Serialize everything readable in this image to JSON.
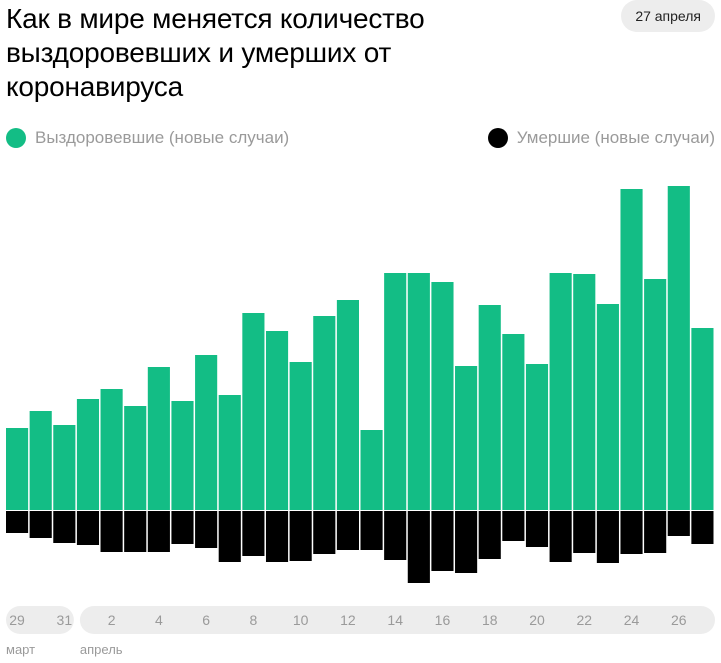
{
  "header": {
    "title": "Как в мире меняется количество выздоровевших и умерших от коронавируса",
    "date": "27 апреля"
  },
  "legend": {
    "recovered": "Выздоровевшие (новые случаи)",
    "deaths": "Умершие (новые случаи)"
  },
  "colors": {
    "recovered": "#13bd85",
    "deaths": "#000000",
    "axis_pill": "#ededed",
    "text_muted": "#9a9a9a"
  },
  "chart_data": {
    "type": "bar",
    "title": "Как в мире меняется количество выздоровевших и умерших от коронавируса",
    "categories": [
      "29",
      "30",
      "31",
      "1",
      "2",
      "3",
      "4",
      "5",
      "6",
      "7",
      "8",
      "9",
      "10",
      "11",
      "12",
      "13",
      "14",
      "15",
      "16",
      "17",
      "18",
      "19",
      "20",
      "21",
      "22",
      "23",
      "24",
      "25",
      "26",
      "27"
    ],
    "tick_labels": [
      "29",
      "31",
      "2",
      "4",
      "6",
      "8",
      "10",
      "12",
      "14",
      "16",
      "18",
      "20",
      "22",
      "24",
      "26"
    ],
    "month_labels": [
      "март",
      "апрель"
    ],
    "series": [
      {
        "name": "Выздоровевшие (новые случаи)",
        "values": [
          82,
          99,
          85,
          111,
          121,
          104,
          143,
          109,
          155,
          115,
          197,
          179,
          148,
          194,
          210,
          80,
          237,
          237,
          228,
          144,
          205,
          176,
          146,
          237,
          236,
          206,
          321,
          231,
          324,
          182
        ]
      },
      {
        "name": "Умершие (новые случаи)",
        "values": [
          -22,
          -27,
          -32,
          -34,
          -41,
          -41,
          -41,
          -33,
          -37,
          -51,
          -45,
          -51,
          -50,
          -43,
          -39,
          -39,
          -49,
          -72,
          -60,
          -62,
          -48,
          -30,
          -36,
          -51,
          -42,
          -52,
          -43,
          -42,
          -25,
          -33
        ]
      }
    ],
    "ylim": [
      -80,
      330
    ],
    "grid": false,
    "legend_position": "top"
  }
}
